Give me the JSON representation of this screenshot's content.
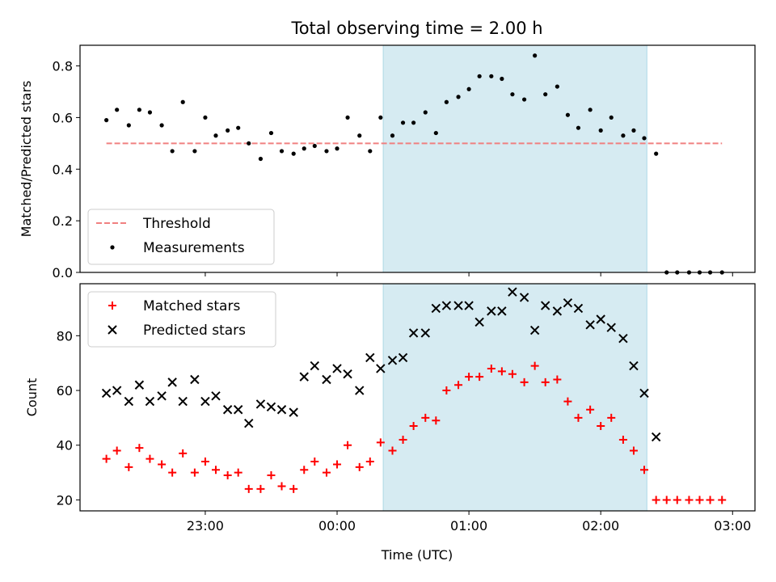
{
  "chart_data": [
    {
      "type": "scatter",
      "title": "Total observing time = 2.00 h",
      "xlabel": "",
      "ylabel": "Matched/Predicted stars",
      "ylim": [
        0,
        0.88
      ],
      "yticks": [
        "0.0",
        "0.2",
        "0.4",
        "0.6",
        "0.8"
      ],
      "x_unit": "hours relative to 00:00 UTC",
      "highlight_span": {
        "x": [
          0.35,
          2.35
        ],
        "color": "#add8e6"
      },
      "legend": {
        "placement": "lower-left",
        "entries": [
          "Threshold",
          "Measurements"
        ]
      },
      "threshold": {
        "name": "Threshold",
        "y": 0.5,
        "x": [
          -1.75,
          2.92
        ],
        "color": "#f08080",
        "style": "dashed"
      },
      "series": [
        {
          "name": "Measurements",
          "color": "#000000",
          "marker": "dot",
          "x": [
            -1.75,
            -1.67,
            -1.58,
            -1.5,
            -1.42,
            -1.33,
            -1.25,
            -1.17,
            -1.08,
            -1.0,
            -0.92,
            -0.83,
            -0.75,
            -0.67,
            -0.58,
            -0.5,
            -0.42,
            -0.33,
            -0.25,
            -0.17,
            -0.08,
            0.0,
            0.08,
            0.17,
            0.25,
            0.33,
            0.42,
            0.5,
            0.58,
            0.67,
            0.75,
            0.83,
            0.92,
            1.0,
            1.08,
            1.17,
            1.25,
            1.33,
            1.42,
            1.5,
            1.58,
            1.67,
            1.75,
            1.83,
            1.92,
            2.0,
            2.08,
            2.17,
            2.25,
            2.33,
            2.42,
            2.5,
            2.58,
            2.67,
            2.75,
            2.83,
            2.92
          ],
          "y": [
            0.59,
            0.63,
            0.57,
            0.63,
            0.62,
            0.57,
            0.47,
            0.66,
            0.47,
            0.6,
            0.53,
            0.55,
            0.56,
            0.5,
            0.44,
            0.54,
            0.47,
            0.46,
            0.48,
            0.49,
            0.47,
            0.48,
            0.6,
            0.53,
            0.47,
            0.6,
            0.53,
            0.58,
            0.58,
            0.62,
            0.54,
            0.66,
            0.68,
            0.71,
            0.76,
            0.76,
            0.75,
            0.69,
            0.67,
            0.84,
            0.69,
            0.72,
            0.61,
            0.56,
            0.63,
            0.55,
            0.6,
            0.53,
            0.55,
            0.52,
            0.46,
            0.0,
            0.0,
            0.0,
            0.0,
            0.0,
            0.0
          ]
        }
      ]
    },
    {
      "type": "scatter",
      "title": "",
      "xlabel": "Time (UTC)",
      "ylabel": "Count",
      "ylim": [
        16,
        99
      ],
      "yticks": [
        "20",
        "40",
        "60",
        "80"
      ],
      "xlim": [
        -1.95,
        3.17
      ],
      "xticks": [
        {
          "x": -1.0,
          "label": "23:00"
        },
        {
          "x": 0.0,
          "label": "00:00"
        },
        {
          "x": 1.0,
          "label": "01:00"
        },
        {
          "x": 2.0,
          "label": "02:00"
        },
        {
          "x": 3.0,
          "label": "03:00"
        }
      ],
      "highlight_span": {
        "x": [
          0.35,
          2.35
        ],
        "color": "#add8e6"
      },
      "legend": {
        "placement": "upper-left",
        "entries": [
          "Matched stars",
          "Predicted stars"
        ]
      },
      "series": [
        {
          "name": "Matched stars",
          "color": "#ff0000",
          "marker": "plus",
          "x": [
            -1.75,
            -1.67,
            -1.58,
            -1.5,
            -1.42,
            -1.33,
            -1.25,
            -1.17,
            -1.08,
            -1.0,
            -0.92,
            -0.83,
            -0.75,
            -0.67,
            -0.58,
            -0.5,
            -0.42,
            -0.33,
            -0.25,
            -0.17,
            -0.08,
            0.0,
            0.08,
            0.17,
            0.25,
            0.33,
            0.42,
            0.5,
            0.58,
            0.67,
            0.75,
            0.83,
            0.92,
            1.0,
            1.08,
            1.17,
            1.25,
            1.33,
            1.42,
            1.5,
            1.58,
            1.67,
            1.75,
            1.83,
            1.92,
            2.0,
            2.08,
            2.17,
            2.25,
            2.33,
            2.42,
            2.5,
            2.58,
            2.67,
            2.75,
            2.83,
            2.92
          ],
          "y": [
            35,
            38,
            32,
            39,
            35,
            33,
            30,
            37,
            30,
            34,
            31,
            29,
            30,
            24,
            24,
            29,
            25,
            24,
            31,
            34,
            30,
            33,
            40,
            32,
            34,
            41,
            38,
            42,
            47,
            50,
            49,
            60,
            62,
            65,
            65,
            68,
            67,
            66,
            63,
            69,
            63,
            64,
            56,
            50,
            53,
            47,
            50,
            42,
            38,
            31,
            20,
            20,
            20,
            20,
            20,
            20,
            20
          ]
        },
        {
          "name": "Predicted stars",
          "color": "#000000",
          "marker": "x",
          "x": [
            -1.75,
            -1.67,
            -1.58,
            -1.5,
            -1.42,
            -1.33,
            -1.25,
            -1.17,
            -1.08,
            -1.0,
            -0.92,
            -0.83,
            -0.75,
            -0.67,
            -0.58,
            -0.5,
            -0.42,
            -0.33,
            -0.25,
            -0.17,
            -0.08,
            0.0,
            0.08,
            0.17,
            0.25,
            0.33,
            0.42,
            0.5,
            0.58,
            0.67,
            0.75,
            0.83,
            0.92,
            1.0,
            1.08,
            1.17,
            1.25,
            1.33,
            1.42,
            1.5,
            1.58,
            1.67,
            1.75,
            1.83,
            1.92,
            2.0,
            2.08,
            2.17,
            2.25,
            2.33,
            2.42
          ],
          "y": [
            59,
            60,
            56,
            62,
            56,
            58,
            63,
            56,
            64,
            56,
            58,
            53,
            53,
            48,
            55,
            54,
            53,
            52,
            65,
            69,
            64,
            68,
            66,
            60,
            72,
            68,
            71,
            72,
            81,
            81,
            90,
            91,
            91,
            91,
            85,
            89,
            89,
            96,
            94,
            82,
            91,
            89,
            92,
            90,
            84,
            86,
            83,
            79,
            69,
            59,
            43
          ]
        }
      ]
    }
  ]
}
